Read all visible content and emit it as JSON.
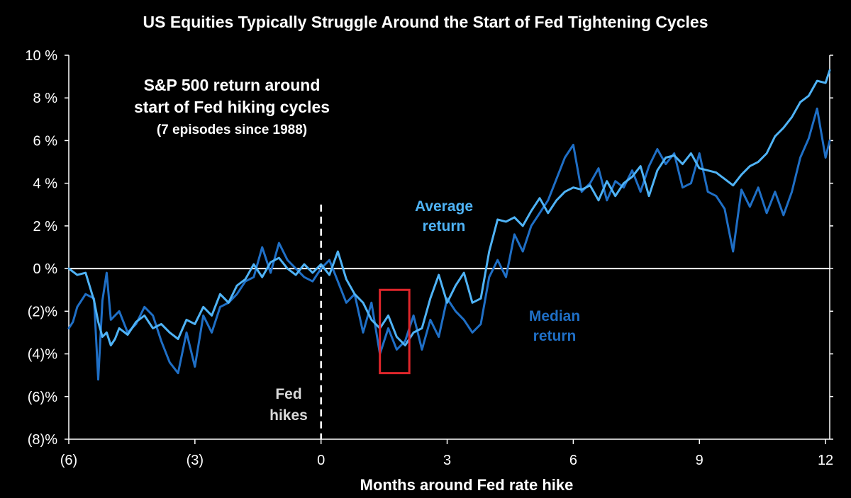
{
  "title": "US Equities Typically Struggle Around the Start of Fed Tightening Cycles",
  "annotations": {
    "box_line1": "S&P 500 return around",
    "box_line2": "start of Fed hiking cycles",
    "box_line3": "(7 episodes since 1988)",
    "fed_line1": "Fed",
    "fed_line2": "hikes",
    "avg_line1": "Average",
    "avg_line2": "return",
    "med_line1": "Median",
    "med_line2": "return"
  },
  "colors": {
    "background": "#000000",
    "average": "#4fb3f6",
    "median": "#1f6fc6",
    "highlight_box": "#e0262b",
    "axis": "#ffffff",
    "fed_label": "#d9d9d9"
  },
  "chart_data": {
    "type": "line",
    "title": "US Equities Typically Struggle Around the Start of Fed Tightening Cycles",
    "xlabel": "Months around Fed rate hike",
    "ylabel": "",
    "xlim": [
      -6,
      12.1
    ],
    "ylim": [
      -8,
      10
    ],
    "x_ticks": [
      -6,
      -3,
      0,
      3,
      6,
      9,
      12
    ],
    "x_tick_labels": [
      "(6)",
      "(3)",
      "0",
      "3",
      "6",
      "9",
      "12"
    ],
    "y_ticks": [
      10,
      8,
      6,
      4,
      2,
      0,
      -2,
      -4,
      -6,
      -8
    ],
    "y_tick_labels": [
      "10 %",
      "8 %",
      "6 %",
      "4 %",
      "2 %",
      "0 %",
      "(2)%",
      "(4)%",
      "(6)%",
      "(8)%"
    ],
    "grid": false,
    "series": [
      {
        "name": "Average return",
        "x": [
          -6,
          -5.8,
          -5.6,
          -5.4,
          -5.3,
          -5.2,
          -5.1,
          -5.0,
          -4.9,
          -4.8,
          -4.6,
          -4.4,
          -4.2,
          -4.0,
          -3.8,
          -3.6,
          -3.4,
          -3.2,
          -3.0,
          -2.8,
          -2.6,
          -2.4,
          -2.2,
          -2.0,
          -1.8,
          -1.6,
          -1.4,
          -1.2,
          -1.0,
          -0.8,
          -0.6,
          -0.4,
          -0.2,
          0,
          0.2,
          0.4,
          0.6,
          0.8,
          1.0,
          1.2,
          1.4,
          1.6,
          1.8,
          2.0,
          2.2,
          2.4,
          2.6,
          2.8,
          3.0,
          3.2,
          3.4,
          3.6,
          3.8,
          4.0,
          4.2,
          4.4,
          4.6,
          4.8,
          5.0,
          5.2,
          5.4,
          5.6,
          5.8,
          6.0,
          6.2,
          6.4,
          6.6,
          6.8,
          7.0,
          7.2,
          7.4,
          7.6,
          7.8,
          8.0,
          8.2,
          8.4,
          8.6,
          8.8,
          9.0,
          9.2,
          9.4,
          9.6,
          9.8,
          10.0,
          10.2,
          10.4,
          10.6,
          10.8,
          11.0,
          11.2,
          11.4,
          11.6,
          11.8,
          12.0,
          12.1
        ],
        "values": [
          0.0,
          -0.3,
          -0.2,
          -1.5,
          -2.5,
          -3.2,
          -3.0,
          -3.6,
          -3.3,
          -2.8,
          -3.1,
          -2.5,
          -2.2,
          -2.8,
          -2.6,
          -3.0,
          -3.3,
          -2.4,
          -2.6,
          -1.8,
          -2.2,
          -1.2,
          -1.6,
          -0.8,
          -0.5,
          0.2,
          -0.4,
          0.3,
          0.5,
          0.0,
          -0.3,
          0.2,
          -0.2,
          0.2,
          -0.3,
          0.8,
          -0.5,
          -1.2,
          -1.6,
          -2.4,
          -2.8,
          -2.2,
          -3.2,
          -3.6,
          -3.0,
          -2.8,
          -1.4,
          -0.3,
          -1.6,
          -0.8,
          -0.2,
          -1.6,
          -1.4,
          0.8,
          2.3,
          2.2,
          2.4,
          2.0,
          2.7,
          3.3,
          2.6,
          3.2,
          3.6,
          3.8,
          3.7,
          3.9,
          3.2,
          4.1,
          3.4,
          4.0,
          4.3,
          4.8,
          3.4,
          4.6,
          5.2,
          5.3,
          4.9,
          5.4,
          4.7,
          4.6,
          4.5,
          4.2,
          3.9,
          4.4,
          4.8,
          5.0,
          5.4,
          6.2,
          6.6,
          7.1,
          7.8,
          8.1,
          8.8,
          8.7,
          9.3
        ]
      },
      {
        "name": "Median return",
        "x": [
          -6,
          -5.9,
          -5.8,
          -5.6,
          -5.4,
          -5.3,
          -5.2,
          -5.1,
          -5.0,
          -4.8,
          -4.6,
          -4.4,
          -4.2,
          -4.0,
          -3.8,
          -3.6,
          -3.4,
          -3.2,
          -3.0,
          -2.8,
          -2.6,
          -2.4,
          -2.2,
          -2.0,
          -1.8,
          -1.6,
          -1.4,
          -1.2,
          -1.0,
          -0.8,
          -0.6,
          -0.4,
          -0.2,
          0,
          0.2,
          0.4,
          0.6,
          0.8,
          1.0,
          1.2,
          1.4,
          1.6,
          1.8,
          2.0,
          2.2,
          2.4,
          2.6,
          2.8,
          3.0,
          3.2,
          3.4,
          3.6,
          3.8,
          4.0,
          4.2,
          4.4,
          4.6,
          4.8,
          5.0,
          5.2,
          5.4,
          5.6,
          5.8,
          6.0,
          6.2,
          6.4,
          6.6,
          6.8,
          7.0,
          7.2,
          7.4,
          7.6,
          7.8,
          8.0,
          8.2,
          8.4,
          8.6,
          8.8,
          9.0,
          9.2,
          9.4,
          9.6,
          9.8,
          10.0,
          10.2,
          10.4,
          10.6,
          10.8,
          11.0,
          11.2,
          11.4,
          11.6,
          11.8,
          12.0,
          12.1
        ],
        "values": [
          -2.8,
          -2.5,
          -1.8,
          -1.2,
          -1.4,
          -5.2,
          -1.5,
          -0.2,
          -2.4,
          -2.0,
          -3.0,
          -2.6,
          -1.8,
          -2.2,
          -3.4,
          -4.4,
          -4.9,
          -3.0,
          -4.6,
          -2.2,
          -3.0,
          -1.8,
          -1.6,
          -1.2,
          -0.6,
          -0.4,
          1.0,
          -0.2,
          1.2,
          0.4,
          0.0,
          -0.4,
          -0.6,
          0.0,
          0.4,
          -0.6,
          -1.6,
          -1.2,
          -3.0,
          -1.6,
          -4.0,
          -2.8,
          -3.8,
          -3.4,
          -2.2,
          -3.8,
          -2.4,
          -3.2,
          -1.4,
          -2.0,
          -2.4,
          -3.0,
          -2.6,
          -0.4,
          0.4,
          -0.4,
          1.6,
          0.8,
          2.0,
          2.6,
          3.2,
          4.2,
          5.2,
          5.8,
          3.6,
          4.0,
          4.7,
          3.2,
          4.1,
          3.8,
          4.6,
          3.6,
          4.8,
          5.6,
          4.9,
          5.4,
          3.8,
          4.0,
          5.4,
          3.6,
          3.4,
          2.8,
          0.8,
          3.7,
          2.9,
          3.8,
          2.6,
          3.6,
          2.5,
          3.6,
          5.2,
          6.1,
          7.5,
          5.2,
          6.0
        ]
      }
    ],
    "vertical_line_x": 0,
    "highlight_box": {
      "x": [
        1.4,
        2.1
      ],
      "y": [
        -4.9,
        -1.0
      ]
    }
  }
}
